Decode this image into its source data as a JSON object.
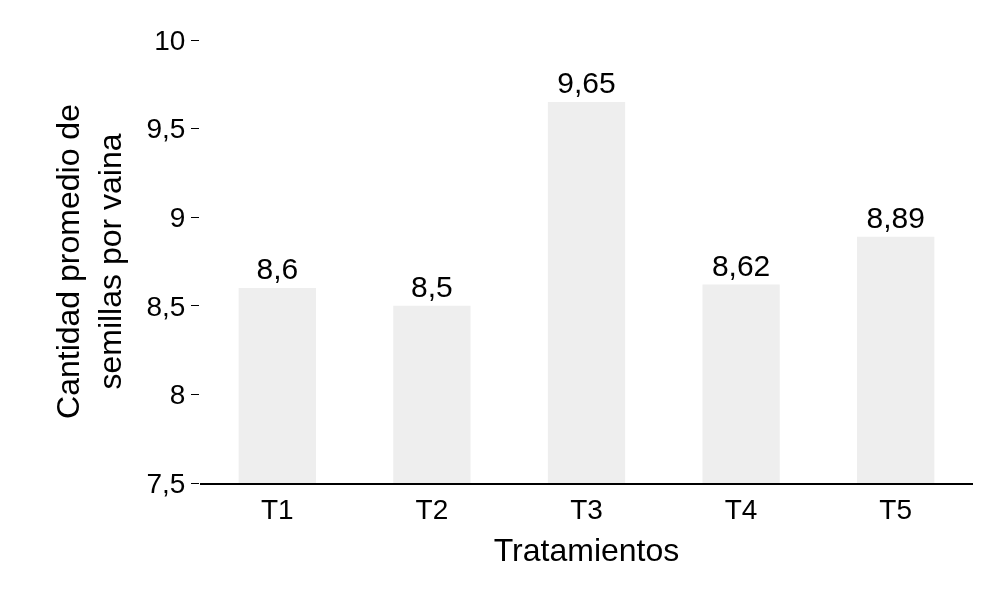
{
  "chart_data": {
    "type": "bar",
    "xlabel": "Tratamientos",
    "ylabel": "Cantidad promedio de\nsemillas por vaina",
    "categories": [
      "T1",
      "T2",
      "T3",
      "T4",
      "T5"
    ],
    "values": [
      8.6,
      8.5,
      9.65,
      8.62,
      8.89
    ],
    "value_labels": [
      "8,6",
      "8,5",
      "9,65",
      "8,62",
      "8,89"
    ],
    "color": "#eeeeee",
    "ylim": [
      7.5,
      10
    ],
    "yticks": [
      {
        "value": 7.5,
        "label": "7,5"
      },
      8,
      {
        "value": 8.5,
        "label": "8,5"
      },
      9,
      {
        "value": 9.5,
        "label": "9,5"
      },
      10
    ],
    "legend": false
  }
}
